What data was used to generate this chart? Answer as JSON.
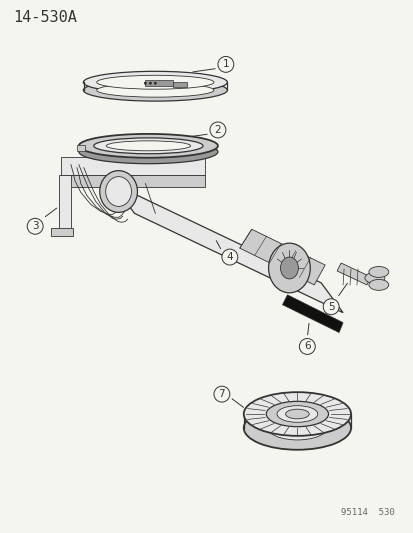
{
  "title": "14-530A",
  "watermark": "95114  530",
  "bg_color": "#f5f5f0",
  "line_color": "#333333",
  "fill_light": "#e8e8e8",
  "fill_med": "#cccccc",
  "fill_dark": "#999999",
  "fill_black": "#111111",
  "title_fontsize": 11,
  "callout_fontsize": 7.5,
  "callout_r": 8
}
